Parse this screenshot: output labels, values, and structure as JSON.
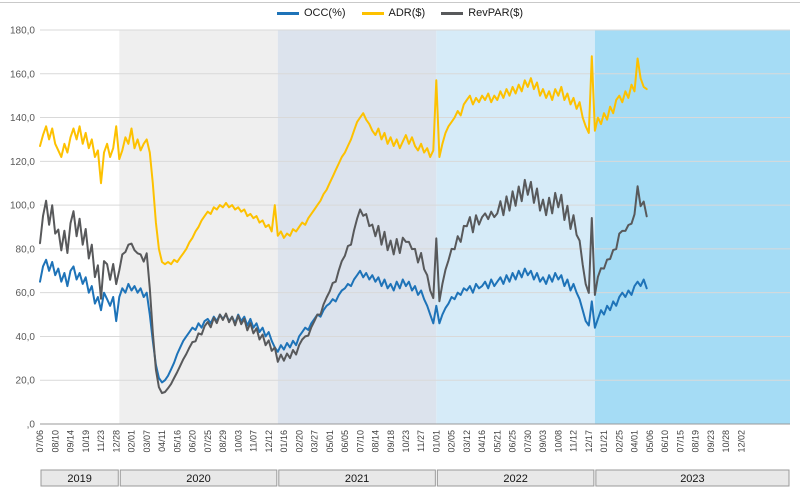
{
  "chart_data": {
    "type": "line",
    "title": "",
    "grid": "horizontal",
    "legend_position": "top",
    "ylim": [
      0,
      180
    ],
    "y_ticks": [
      {
        "value": 180,
        "label": "180,0"
      },
      {
        "value": 160,
        "label": "160,0"
      },
      {
        "value": 140,
        "label": "140,0"
      },
      {
        "value": 120,
        "label": "120,0"
      },
      {
        "value": 100,
        "label": "100,0"
      },
      {
        "value": 80,
        "label": "80,0"
      },
      {
        "value": 60,
        "label": "60,0"
      },
      {
        "value": 40,
        "label": "40,0"
      },
      {
        "value": 20,
        "label": "20,0"
      },
      {
        "value": 0,
        "label": ",0"
      }
    ],
    "x_axis": {
      "tick_interval_weeks": 5,
      "total_weeks": 246,
      "tick_labels": [
        "07/06",
        "08/10",
        "09/14",
        "10/19",
        "11/23",
        "12/28",
        "02/01",
        "03/07",
        "04/11",
        "05/16",
        "06/20",
        "07/25",
        "08/29",
        "10/03",
        "11/07",
        "12/12",
        "01/16",
        "02/20",
        "03/27",
        "05/01",
        "06/05",
        "07/10",
        "08/14",
        "09/18",
        "10/23",
        "11/27",
        "01/01",
        "02/05",
        "03/12",
        "04/16",
        "05/21",
        "06/25",
        "07/30",
        "09/03",
        "10/08",
        "11/12",
        "12/17",
        "01/21",
        "02/25",
        "04/01",
        "05/06",
        "06/10",
        "07/15",
        "08/19",
        "09/23",
        "10/28",
        "12/02"
      ]
    },
    "year_bands": [
      {
        "label": "2019",
        "start_week": 0,
        "end_week": 26,
        "color": "#ffffff"
      },
      {
        "label": "2020",
        "start_week": 26,
        "end_week": 78,
        "color": "#efefef"
      },
      {
        "label": "2021",
        "start_week": 78,
        "end_week": 130,
        "color": "#dce3ed"
      },
      {
        "label": "2022",
        "start_week": 130,
        "end_week": 182,
        "color": "#d6ebf8"
      },
      {
        "label": "2023",
        "start_week": 182,
        "end_week": 246,
        "color": "#a5dcf5"
      }
    ],
    "series": [
      {
        "id": "occ",
        "name": "OCC(%)",
        "color": "#1e73b8",
        "values": [
          65,
          72,
          75,
          70,
          74,
          68,
          71,
          65,
          69,
          63,
          70,
          72,
          66,
          69,
          64,
          67,
          60,
          63,
          55,
          58,
          52,
          60,
          57,
          54,
          58,
          47,
          58,
          62,
          60,
          64,
          61,
          63,
          60,
          62,
          58,
          60,
          50,
          38,
          27,
          21,
          19,
          20,
          22,
          25,
          28,
          32,
          35,
          38,
          40,
          42,
          44,
          43,
          46,
          44,
          47,
          48,
          46,
          49,
          47,
          50,
          48,
          50,
          47,
          49,
          46,
          50,
          47,
          49,
          45,
          48,
          44,
          46,
          42,
          44,
          40,
          42,
          38,
          35,
          33,
          36,
          34,
          37,
          35,
          38,
          36,
          40,
          42,
          44,
          43,
          46,
          48,
          50,
          49,
          52,
          54,
          55,
          57,
          56,
          59,
          61,
          62,
          64,
          63,
          66,
          68,
          70,
          67,
          69,
          66,
          68,
          65,
          67,
          63,
          66,
          62,
          64,
          61,
          65,
          62,
          66,
          63,
          65,
          61,
          63,
          59,
          61,
          57,
          54,
          50,
          46,
          54,
          46,
          50,
          53,
          55,
          58,
          57,
          60,
          59,
          62,
          61,
          63,
          60,
          64,
          62,
          63,
          65,
          62,
          66,
          63,
          65,
          67,
          64,
          68,
          65,
          69,
          66,
          70,
          67,
          71,
          68,
          70,
          66,
          69,
          65,
          67,
          64,
          68,
          65,
          69,
          66,
          68,
          63,
          66,
          61,
          64,
          60,
          57,
          52,
          47,
          45,
          56,
          44,
          48,
          52,
          50,
          54,
          52,
          56,
          54,
          58,
          60,
          58,
          61,
          59,
          63,
          65,
          63,
          66,
          62
        ]
      },
      {
        "id": "adr",
        "name": "ADR($)",
        "color": "#fdc100",
        "values": [
          127,
          132,
          136,
          130,
          135,
          128,
          125,
          122,
          128,
          124,
          131,
          135,
          130,
          136,
          128,
          133,
          126,
          130,
          122,
          125,
          110,
          124,
          128,
          122,
          126,
          136,
          121,
          125,
          131,
          128,
          135,
          126,
          130,
          125,
          128,
          130,
          124,
          110,
          92,
          80,
          74,
          73,
          74,
          73,
          75,
          74,
          76,
          78,
          80,
          83,
          85,
          88,
          90,
          93,
          95,
          97,
          96,
          99,
          98,
          100,
          99,
          101,
          99,
          100,
          98,
          99,
          97,
          98,
          95,
          96,
          94,
          95,
          92,
          93,
          90,
          91,
          88,
          100,
          86,
          88,
          85,
          87,
          86,
          89,
          88,
          90,
          92,
          91,
          94,
          96,
          98,
          100,
          102,
          105,
          107,
          110,
          113,
          116,
          119,
          122,
          124,
          127,
          130,
          134,
          138,
          140,
          142,
          139,
          137,
          134,
          132,
          135,
          130,
          133,
          128,
          131,
          127,
          130,
          126,
          129,
          132,
          128,
          131,
          127,
          125,
          128,
          124,
          126,
          122,
          125,
          157,
          122,
          128,
          133,
          136,
          138,
          140,
          143,
          141,
          146,
          148,
          150,
          146,
          149,
          147,
          150,
          148,
          151,
          147,
          150,
          148,
          152,
          149,
          153,
          150,
          154,
          151,
          155,
          152,
          157,
          154,
          158,
          153,
          156,
          150,
          153,
          149,
          152,
          148,
          153,
          150,
          154,
          148,
          151,
          146,
          149,
          144,
          147,
          140,
          136,
          133,
          168,
          134,
          140,
          137,
          142,
          139,
          145,
          142,
          148,
          150,
          147,
          152,
          149,
          155,
          152,
          167,
          158,
          154,
          153
        ]
      },
      {
        "id": "revpar",
        "name": "RevPAR($)",
        "color": "#58595b",
        "values": [
          82.6,
          95,
          102,
          91,
          99.9,
          87,
          88.8,
          79.3,
          88.3,
          78.1,
          91.7,
          97.2,
          85.8,
          93.8,
          81.9,
          89.1,
          75.6,
          81.9,
          67.1,
          72.5,
          57.2,
          74.4,
          73,
          65.9,
          73.1,
          63.9,
          70.2,
          77.5,
          78.6,
          81.9,
          82.4,
          79.4,
          78,
          77.5,
          74.2,
          78,
          62,
          41.8,
          24.8,
          16.8,
          14.1,
          14.6,
          16.3,
          18.3,
          21,
          23.7,
          26.6,
          29.6,
          32,
          34.9,
          37.4,
          37.8,
          41.4,
          40.9,
          44.7,
          46.6,
          44.2,
          48.5,
          46.1,
          50,
          47.5,
          50.5,
          46.5,
          49,
          45.1,
          49.5,
          45.6,
          48,
          42.8,
          46.1,
          41.4,
          43.7,
          38.6,
          40.9,
          36,
          38.2,
          33.4,
          35,
          28.4,
          31.7,
          28.9,
          32.2,
          30.1,
          33.8,
          31.7,
          36,
          38.6,
          40,
          40.4,
          44.2,
          47,
          50,
          50,
          54.6,
          57.8,
          60.5,
          64.4,
          65,
          70.2,
          74.4,
          76.9,
          81.3,
          81.9,
          88.4,
          93.8,
          98,
          95.1,
          95.9,
          90.4,
          91.1,
          85.8,
          90.5,
          81.9,
          87.8,
          79.4,
          83.8,
          77.5,
          84.5,
          78.1,
          85.1,
          83.2,
          83.2,
          79.9,
          80,
          73.8,
          78.1,
          70.7,
          68,
          61,
          57.5,
          84.8,
          56.1,
          64,
          70.5,
          74.8,
          80,
          79.8,
          85.8,
          83.2,
          90.5,
          90.3,
          94.5,
          87.6,
          95.4,
          91.1,
          94.5,
          96.2,
          93.6,
          97,
          94.5,
          96.2,
          101.8,
          95.4,
          104,
          97.5,
          106.3,
          99.7,
          108.5,
          101.8,
          111.5,
          104.7,
          110.6,
          101,
          107.6,
          97.5,
          102.5,
          95.4,
          103.4,
          96.2,
          105.6,
          99,
          104.7,
          93.2,
          99.7,
          89.1,
          95.4,
          86.4,
          83.8,
          72.8,
          63.9,
          59.9,
          94.1,
          59,
          67.2,
          71.2,
          71,
          75.1,
          75.4,
          79.5,
          79.9,
          87,
          88.2,
          88.2,
          90.9,
          91.5,
          95.8,
          108.6,
          99.5,
          101.6,
          94.9
        ]
      }
    ]
  }
}
